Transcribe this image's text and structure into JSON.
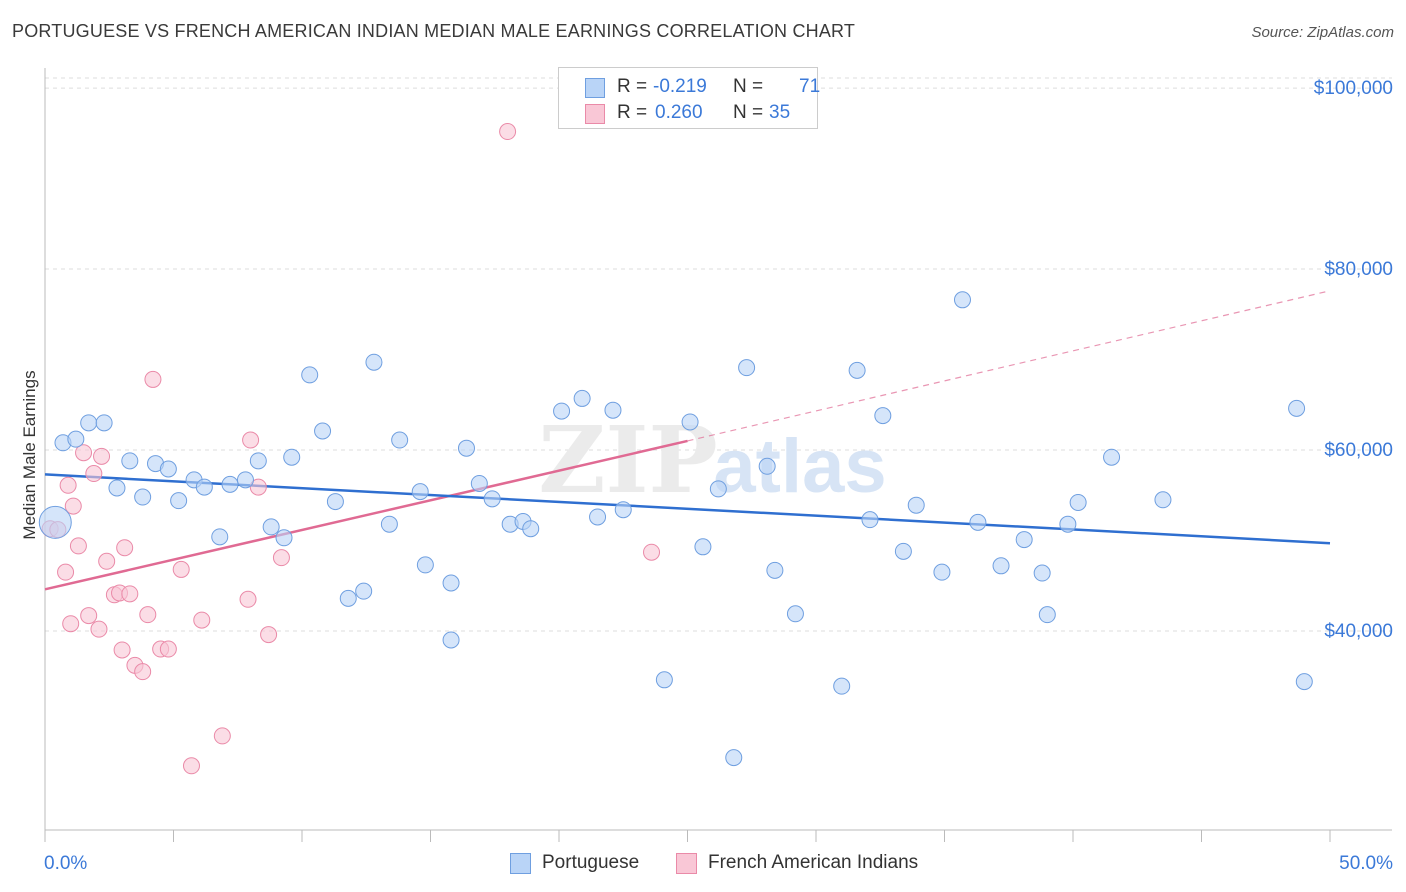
{
  "title": "PORTUGUESE VS FRENCH AMERICAN INDIAN MEDIAN MALE EARNINGS CORRELATION CHART",
  "source": "Source: ZipAtlas.com",
  "watermark": {
    "zip": "ZIP",
    "atlas": "atlas"
  },
  "legend": {
    "rows": [
      {
        "r_label": "R =",
        "r_value": "-0.219",
        "n_label": "N =",
        "n_value": "71",
        "color": "#b9d4f7"
      },
      {
        "r_label": "R =",
        "r_value": "0.260",
        "n_label": "N =",
        "n_value": "35",
        "color": "#f9c7d6"
      }
    ]
  },
  "bottom_legend": [
    {
      "label": "Portuguese",
      "color": "#b9d4f7"
    },
    {
      "label": "French American Indians",
      "color": "#f9c7d6"
    }
  ],
  "colors": {
    "blue_fill": "#b9d4f7",
    "blue_stroke": "#6f9fe0",
    "blue_line": "#2f6fd0",
    "pink_fill": "#f9c7d6",
    "pink_stroke": "#ea8aa8",
    "pink_line": "#e06a93",
    "tick_label": "#3b79d8",
    "grid": "#dddddd"
  },
  "chart_data": {
    "type": "scatter",
    "title": "PORTUGUESE VS FRENCH AMERICAN INDIAN MEDIAN MALE EARNINGS CORRELATION CHART",
    "xlabel": "",
    "ylabel": "Median Male Earnings",
    "xlim": [
      0,
      50
    ],
    "ylim": [
      18000,
      102000
    ],
    "x_tick_labels": [
      "0.0%",
      "50.0%"
    ],
    "y_ticks": [
      {
        "value": 40000,
        "label": "$40,000"
      },
      {
        "value": 60000,
        "label": "$60,000"
      },
      {
        "value": 80000,
        "label": "$80,000"
      },
      {
        "value": 100000,
        "label": "$100,000"
      }
    ],
    "grid": "horizontal dashed",
    "legend_position": "top-center",
    "series": [
      {
        "name": "Portuguese",
        "color": "#b9d4f7",
        "r": -0.219,
        "n": 71,
        "trend": {
          "x": [
            0,
            50
          ],
          "y": [
            57300,
            49700
          ]
        },
        "points": [
          [
            0.4,
            52000
          ],
          [
            0.7,
            60800
          ],
          [
            1.2,
            61200
          ],
          [
            1.7,
            63000
          ],
          [
            2.3,
            63000
          ],
          [
            2.8,
            55800
          ],
          [
            3.3,
            58800
          ],
          [
            3.8,
            54800
          ],
          [
            4.3,
            58500
          ],
          [
            4.8,
            57900
          ],
          [
            5.2,
            54400
          ],
          [
            5.8,
            56700
          ],
          [
            6.2,
            55900
          ],
          [
            6.8,
            50400
          ],
          [
            7.2,
            56200
          ],
          [
            7.8,
            56700
          ],
          [
            8.3,
            58800
          ],
          [
            8.8,
            51500
          ],
          [
            9.3,
            50300
          ],
          [
            9.6,
            59200
          ],
          [
            10.3,
            68300
          ],
          [
            10.8,
            62100
          ],
          [
            11.3,
            54300
          ],
          [
            11.8,
            43600
          ],
          [
            12.4,
            44400
          ],
          [
            12.8,
            69700
          ],
          [
            13.4,
            51800
          ],
          [
            13.8,
            61100
          ],
          [
            14.6,
            55400
          ],
          [
            14.8,
            47300
          ],
          [
            15.8,
            45300
          ],
          [
            15.8,
            39000
          ],
          [
            16.4,
            60200
          ],
          [
            16.9,
            56300
          ],
          [
            17.4,
            54600
          ],
          [
            18.1,
            51800
          ],
          [
            18.6,
            52100
          ],
          [
            18.9,
            51300
          ],
          [
            20.1,
            64300
          ],
          [
            20.9,
            65700
          ],
          [
            21.5,
            52600
          ],
          [
            22.1,
            64400
          ],
          [
            22.5,
            53400
          ],
          [
            24.1,
            34600
          ],
          [
            25.1,
            63100
          ],
          [
            25.6,
            49300
          ],
          [
            26.2,
            55700
          ],
          [
            26.8,
            26000
          ],
          [
            27.3,
            69100
          ],
          [
            28.1,
            58200
          ],
          [
            28.4,
            46700
          ],
          [
            29.2,
            41900
          ],
          [
            31.0,
            33900
          ],
          [
            31.6,
            68800
          ],
          [
            32.1,
            52300
          ],
          [
            32.6,
            63800
          ],
          [
            33.4,
            48800
          ],
          [
            33.9,
            53900
          ],
          [
            34.9,
            46500
          ],
          [
            35.7,
            76600
          ],
          [
            36.3,
            52000
          ],
          [
            37.2,
            47200
          ],
          [
            38.1,
            50100
          ],
          [
            38.8,
            46400
          ],
          [
            39.0,
            41800
          ],
          [
            39.8,
            51800
          ],
          [
            40.2,
            54200
          ],
          [
            41.5,
            59200
          ],
          [
            43.5,
            54500
          ],
          [
            48.7,
            64600
          ],
          [
            49.0,
            34400
          ]
        ]
      },
      {
        "name": "French American Indians",
        "color": "#f9c7d6",
        "r": 0.26,
        "n": 35,
        "trend": {
          "x": [
            0,
            25
          ],
          "y": [
            44600,
            61000
          ]
        },
        "trend_dashed": {
          "x": [
            25,
            50
          ],
          "y": [
            61000,
            77600
          ]
        },
        "points": [
          [
            0.2,
            51300
          ],
          [
            0.5,
            51200
          ],
          [
            0.8,
            46500
          ],
          [
            0.9,
            56100
          ],
          [
            1.0,
            40800
          ],
          [
            1.1,
            53800
          ],
          [
            1.3,
            49400
          ],
          [
            1.5,
            59700
          ],
          [
            1.7,
            41700
          ],
          [
            1.9,
            57400
          ],
          [
            2.1,
            40200
          ],
          [
            2.2,
            59300
          ],
          [
            2.4,
            47700
          ],
          [
            2.7,
            44000
          ],
          [
            2.9,
            44200
          ],
          [
            3.0,
            37900
          ],
          [
            3.1,
            49200
          ],
          [
            3.3,
            44100
          ],
          [
            3.5,
            36200
          ],
          [
            3.8,
            35500
          ],
          [
            4.0,
            41800
          ],
          [
            4.2,
            67800
          ],
          [
            4.5,
            38000
          ],
          [
            4.8,
            38000
          ],
          [
            5.3,
            46800
          ],
          [
            5.7,
            25100
          ],
          [
            6.1,
            41200
          ],
          [
            6.9,
            28400
          ],
          [
            7.9,
            43500
          ],
          [
            8.0,
            61100
          ],
          [
            8.3,
            55900
          ],
          [
            8.7,
            39600
          ],
          [
            9.2,
            48100
          ],
          [
            18.0,
            95200
          ],
          [
            23.6,
            48700
          ]
        ]
      }
    ]
  }
}
